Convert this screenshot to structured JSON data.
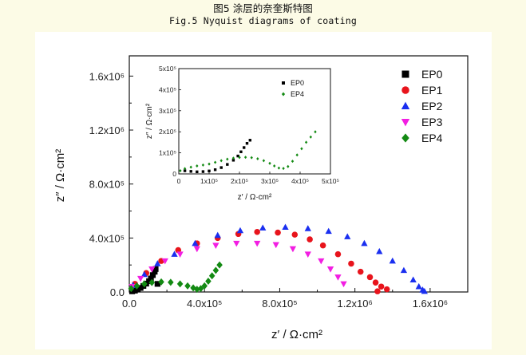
{
  "caption": {
    "cn": "图5 涂层的奈奎斯特图",
    "en": "Fig.5 Nyquist diagrams of coating"
  },
  "chart_data": {
    "type": "scatter",
    "title": "",
    "xlabel": "z′ / Ω·cm²",
    "ylabel": "z″ / Ω·cm²",
    "xlim": [
      0,
      1800000
    ],
    "ylim": [
      0,
      1750000
    ],
    "x_ticks": [
      "0.0",
      "4.0x10⁵",
      "8.0x10⁵",
      "1.2x10⁶",
      "1.6x10⁶"
    ],
    "y_ticks": [
      "0.0",
      "4.0x10⁵",
      "8.0x10⁵",
      "1.2x10⁶",
      "1.6x10⁶"
    ],
    "legend_position": "right",
    "series": [
      {
        "name": "EP0",
        "color": "#000000",
        "marker": "square",
        "points": [
          [
            15000,
            5000
          ],
          [
            30000,
            10000
          ],
          [
            45000,
            18000
          ],
          [
            60000,
            30000
          ],
          [
            75000,
            45000
          ],
          [
            90000,
            62000
          ],
          [
            105000,
            80000
          ],
          [
            115000,
            100000
          ],
          [
            125000,
            125000
          ],
          [
            135000,
            150000
          ],
          [
            140000,
            170000
          ],
          [
            150000,
            60000
          ]
        ]
      },
      {
        "name": "EP1",
        "color": "#e8141c",
        "marker": "circle",
        "points": [
          [
            30000,
            60000
          ],
          [
            90000,
            140000
          ],
          [
            170000,
            230000
          ],
          [
            260000,
            310000
          ],
          [
            360000,
            360000
          ],
          [
            470000,
            400000
          ],
          [
            580000,
            430000
          ],
          [
            680000,
            445000
          ],
          [
            790000,
            440000
          ],
          [
            880000,
            425000
          ],
          [
            960000,
            390000
          ],
          [
            1030000,
            345000
          ],
          [
            1110000,
            280000
          ],
          [
            1180000,
            210000
          ],
          [
            1230000,
            150000
          ],
          [
            1280000,
            110000
          ],
          [
            1310000,
            70000
          ],
          [
            1340000,
            40000
          ],
          [
            1370000,
            20000
          ],
          [
            1320000,
            5000
          ]
        ]
      },
      {
        "name": "EP2",
        "color": "#1a2ff0",
        "marker": "triangle-up",
        "points": [
          [
            20000,
            50000
          ],
          [
            80000,
            130000
          ],
          [
            150000,
            210000
          ],
          [
            240000,
            280000
          ],
          [
            350000,
            360000
          ],
          [
            470000,
            420000
          ],
          [
            590000,
            455000
          ],
          [
            710000,
            475000
          ],
          [
            830000,
            480000
          ],
          [
            950000,
            470000
          ],
          [
            1060000,
            450000
          ],
          [
            1160000,
            410000
          ],
          [
            1250000,
            360000
          ],
          [
            1330000,
            300000
          ],
          [
            1400000,
            230000
          ],
          [
            1460000,
            160000
          ],
          [
            1510000,
            90000
          ],
          [
            1540000,
            40000
          ],
          [
            1560000,
            15000
          ],
          [
            1570000,
            5000
          ]
        ]
      },
      {
        "name": "EP3",
        "color": "#f21ee2",
        "marker": "triangle-down",
        "points": [
          [
            15000,
            40000
          ],
          [
            60000,
            100000
          ],
          [
            120000,
            170000
          ],
          [
            190000,
            230000
          ],
          [
            270000,
            280000
          ],
          [
            360000,
            320000
          ],
          [
            460000,
            345000
          ],
          [
            570000,
            360000
          ],
          [
            680000,
            360000
          ],
          [
            780000,
            350000
          ],
          [
            870000,
            320000
          ],
          [
            950000,
            280000
          ],
          [
            1020000,
            230000
          ],
          [
            1070000,
            170000
          ],
          [
            1110000,
            110000
          ],
          [
            1140000,
            60000
          ]
        ]
      },
      {
        "name": "EP4",
        "color": "#138a13",
        "marker": "diamond",
        "points": [
          [
            10000,
            25000
          ],
          [
            40000,
            45000
          ],
          [
            80000,
            60000
          ],
          [
            120000,
            70000
          ],
          [
            170000,
            75000
          ],
          [
            220000,
            72000
          ],
          [
            270000,
            60000
          ],
          [
            310000,
            45000
          ],
          [
            340000,
            30000
          ],
          [
            360000,
            20000
          ],
          [
            380000,
            25000
          ],
          [
            400000,
            45000
          ],
          [
            420000,
            80000
          ],
          [
            440000,
            120000
          ],
          [
            460000,
            160000
          ],
          [
            480000,
            200000
          ]
        ]
      }
    ],
    "inset": {
      "xlabel": "z′ / Ω·cm²",
      "ylabel": "z″ / Ω·cm²",
      "xlim": [
        0,
        500000
      ],
      "ylim": [
        0,
        500000
      ],
      "x_ticks": [
        "0",
        "1x10⁵",
        "2x10⁵",
        "3x10⁵",
        "4x10⁵",
        "5x10⁵"
      ],
      "y_ticks": [
        "0",
        "1x10⁵",
        "2x10⁵",
        "3x10⁵",
        "4x10⁵",
        "5x10⁵"
      ],
      "series": [
        {
          "name": "EP0",
          "color": "#000000",
          "marker": "square",
          "points": [
            [
              20000,
              15000
            ],
            [
              40000,
              12000
            ],
            [
              60000,
              10000
            ],
            [
              80000,
              11000
            ],
            [
              100000,
              14000
            ],
            [
              120000,
              20000
            ],
            [
              140000,
              30000
            ],
            [
              160000,
              45000
            ],
            [
              180000,
              65000
            ],
            [
              195000,
              85000
            ],
            [
              205000,
              105000
            ],
            [
              215000,
              125000
            ],
            [
              225000,
              145000
            ],
            [
              235000,
              160000
            ]
          ]
        },
        {
          "name": "EP4",
          "color": "#138a13",
          "marker": "diamond",
          "points": [
            [
              5000,
              15000
            ],
            [
              20000,
              25000
            ],
            [
              40000,
              32000
            ],
            [
              60000,
              38000
            ],
            [
              80000,
              42000
            ],
            [
              100000,
              47000
            ],
            [
              120000,
              55000
            ],
            [
              140000,
              63000
            ],
            [
              160000,
              70000
            ],
            [
              180000,
              75000
            ],
            [
              200000,
              78000
            ],
            [
              220000,
              79000
            ],
            [
              240000,
              77000
            ],
            [
              260000,
              72000
            ],
            [
              280000,
              63000
            ],
            [
              300000,
              50000
            ],
            [
              315000,
              38000
            ],
            [
              330000,
              28000
            ],
            [
              345000,
              26000
            ],
            [
              360000,
              35000
            ],
            [
              375000,
              60000
            ],
            [
              390000,
              90000
            ],
            [
              405000,
              120000
            ],
            [
              420000,
              150000
            ],
            [
              435000,
              175000
            ],
            [
              450000,
              200000
            ]
          ]
        }
      ]
    }
  }
}
